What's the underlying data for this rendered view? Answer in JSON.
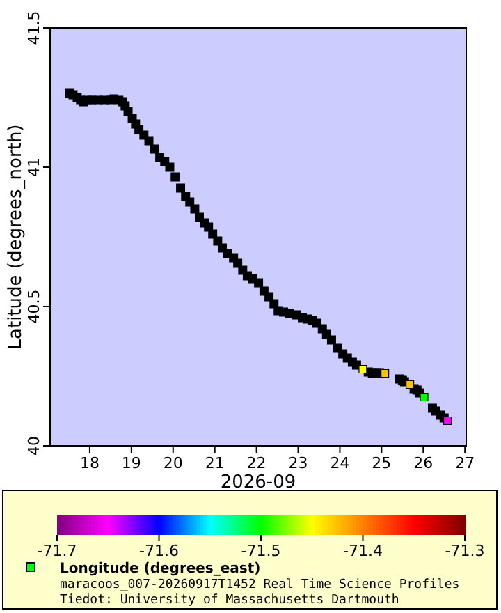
{
  "chart_data": {
    "type": "scatter",
    "xlabel": "2026-09",
    "ylabel": "Latitude (degrees_north)",
    "clabel": "Longitude (degrees_east)",
    "xlim": [
      17.05,
      27.03
    ],
    "ylim": [
      40,
      41.5
    ],
    "xticks": [
      18,
      19,
      20,
      21,
      22,
      23,
      24,
      25,
      26,
      27
    ],
    "yticks": [
      40,
      40.5,
      41,
      41.5
    ],
    "clim": [
      -71.7,
      -71.3
    ],
    "cticks": [
      -71.7,
      -71.6,
      -71.5,
      -71.4,
      -71.3
    ],
    "marker": "square",
    "grid": false,
    "series": [
      {
        "color": "#000000",
        "x": [
          17.52,
          17.6,
          17.7,
          17.78,
          17.85,
          17.95,
          18.05,
          18.2,
          18.35,
          18.5,
          18.58,
          18.7,
          18.78,
          18.85,
          18.92,
          19.02,
          19.1,
          19.18,
          19.3,
          19.42,
          19.55,
          19.68,
          19.8,
          19.92,
          20.05,
          20.18,
          20.3,
          20.4,
          20.52,
          20.63,
          20.75,
          20.85,
          20.95,
          21.07,
          21.18,
          21.3,
          21.45,
          21.55,
          21.67,
          21.78,
          21.9,
          22.05,
          22.18,
          22.3,
          22.42,
          22.52,
          22.65,
          22.8,
          22.95,
          23.1,
          23.22,
          23.35,
          23.45,
          23.58,
          23.68,
          23.8,
          23.95,
          24.07,
          24.18,
          24.3,
          24.4,
          24.68,
          24.78,
          24.88,
          24.95,
          25.42,
          25.5,
          25.55,
          25.78,
          25.85,
          25.92,
          26.22,
          26.3,
          26.42,
          26.5
        ],
        "values": [
          41.265,
          41.26,
          41.25,
          41.24,
          41.235,
          41.24,
          41.24,
          41.24,
          41.24,
          41.24,
          41.245,
          41.24,
          41.235,
          41.22,
          41.2,
          41.175,
          41.155,
          41.135,
          41.115,
          41.095,
          41.065,
          41.035,
          41.02,
          41.0,
          40.965,
          40.925,
          40.895,
          40.875,
          40.85,
          40.82,
          40.8,
          40.785,
          40.76,
          40.735,
          40.71,
          40.69,
          40.675,
          40.655,
          40.63,
          40.61,
          40.6,
          40.585,
          40.555,
          40.535,
          40.51,
          40.485,
          40.48,
          40.475,
          40.47,
          40.46,
          40.455,
          40.45,
          40.44,
          40.42,
          40.4,
          40.38,
          40.35,
          40.33,
          40.315,
          40.3,
          40.29,
          40.265,
          40.26,
          40.26,
          40.26,
          40.24,
          40.235,
          40.23,
          40.205,
          40.2,
          40.19,
          40.135,
          40.125,
          40.11,
          40.1
        ]
      },
      {
        "x": [
          24.55,
          25.08,
          25.68,
          26.02,
          26.58
        ],
        "values": [
          40.275,
          40.26,
          40.22,
          40.175,
          40.09
        ],
        "colors": [
          "#ffff00",
          "#ffc000",
          "#ffc000",
          "#00ff00",
          "#ff00ff"
        ]
      }
    ],
    "annotations": [
      "maracoos_007-20260917T1452 Real Time Science Profiles",
      "Tiedot: University of Massachusetts Dartmouth"
    ]
  }
}
